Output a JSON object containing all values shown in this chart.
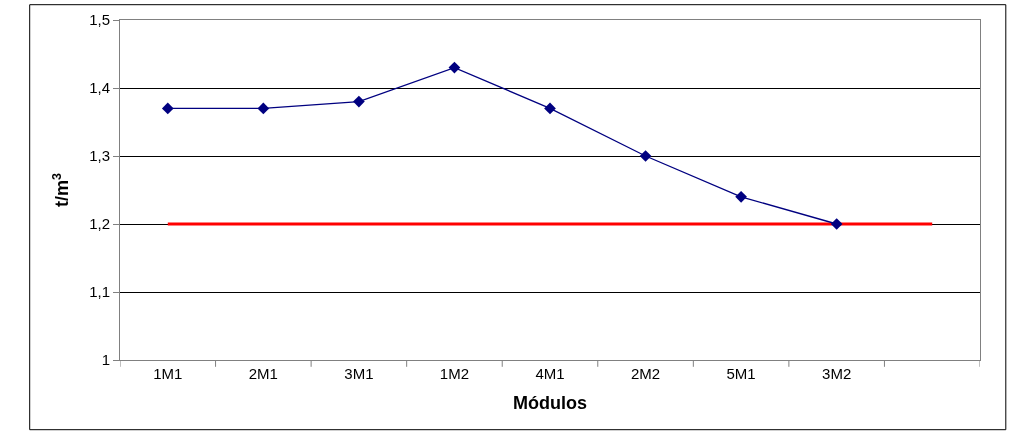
{
  "chart_data": {
    "type": "line",
    "xlabel": "Módulos",
    "ylabel": "t/m$^{3}$",
    "categories": [
      "1M1",
      "2M1",
      "3M1",
      "1M2",
      "4M1",
      "2M2",
      "5M1",
      "3M2",
      null
    ],
    "series": [
      {
        "color": "#ff0000",
        "values": [
          1.2,
          1.2,
          1.2,
          1.2,
          1.2,
          1.2,
          1.2,
          1.2,
          1.2
        ],
        "marker": "none"
      },
      {
        "color": "#000080",
        "values": [
          1.37,
          1.37,
          1.38,
          1.43,
          1.37,
          1.3,
          1.24,
          1.2,
          null
        ],
        "marker": "diamond"
      }
    ],
    "ylim": [
      1,
      1.5
    ],
    "yticks": [
      1,
      {
        "value": 1.1,
        "label": "1,1"
      },
      {
        "value": 1.2,
        "label": "1,2"
      },
      {
        "value": 1.3,
        "label": "1,3"
      },
      {
        "value": 1.4,
        "label": "1,4"
      },
      {
        "value": 1.5,
        "label": "1,5"
      }
    ],
    "grid": "y",
    "line_style": "solid"
  }
}
